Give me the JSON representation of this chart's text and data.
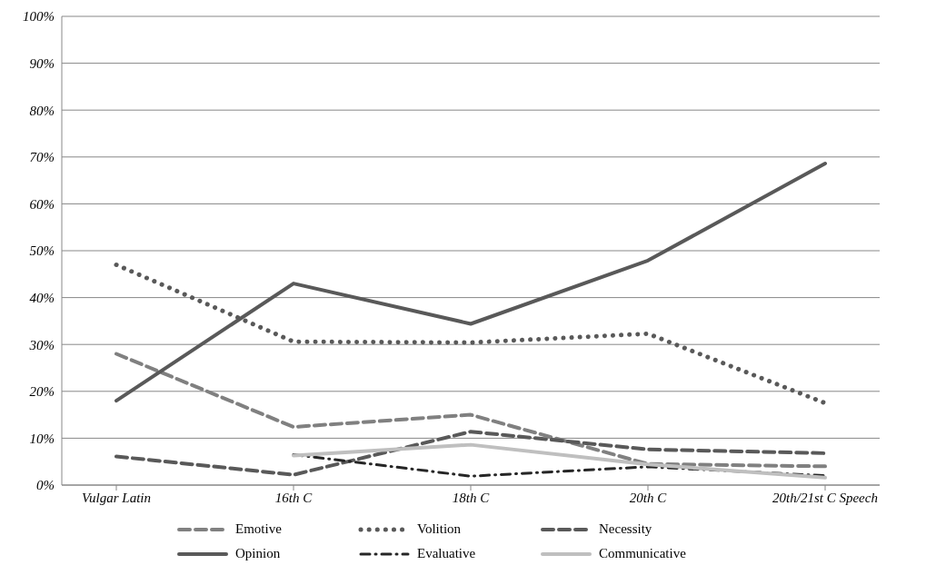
{
  "chart_data": {
    "type": "line",
    "categories": [
      "Vulgar Latin",
      "16th C",
      "18th C",
      "20th C",
      "20th/21st C Speech"
    ],
    "series": [
      {
        "name": "Emotive",
        "color": "#808080",
        "line_style": "dashed",
        "values": [
          28,
          12.4,
          15,
          4.5,
          4
        ]
      },
      {
        "name": "Volition",
        "color": "#595959",
        "line_style": "dotted",
        "values": [
          47,
          30.6,
          30.4,
          32.3,
          17.5
        ]
      },
      {
        "name": "Necessity",
        "color": "#595959",
        "line_style": "dashed",
        "values": [
          6.1,
          2.2,
          11.4,
          7.6,
          6.8
        ]
      },
      {
        "name": "Opinion",
        "color": "#595959",
        "line_style": "solid",
        "values": [
          18,
          43,
          34.4,
          47.9,
          68.6
        ]
      },
      {
        "name": "Evaluative",
        "color": "#262626",
        "line_style": "dashdot",
        "values": [
          null,
          6.5,
          1.9,
          3.9,
          2
        ]
      },
      {
        "name": "Communicative",
        "color": "#bfbfbf",
        "line_style": "solid",
        "values": [
          null,
          6.3,
          8.6,
          4.4,
          1.6
        ]
      }
    ],
    "ylim": [
      0,
      100
    ],
    "yticks": [
      {
        "value": 0,
        "label": "0%"
      },
      {
        "value": 10,
        "label": "10%"
      },
      {
        "value": 20,
        "label": "20%"
      },
      {
        "value": 30,
        "label": "30%"
      },
      {
        "value": 40,
        "label": "40%"
      },
      {
        "value": 50,
        "label": "50%"
      },
      {
        "value": 60,
        "label": "60%"
      },
      {
        "value": 70,
        "label": "70%"
      },
      {
        "value": 80,
        "label": "80%"
      },
      {
        "value": 90,
        "label": "90%"
      },
      {
        "value": 100,
        "label": "100%"
      }
    ],
    "grid": "y",
    "legend": "bottom",
    "marker": "none"
  }
}
